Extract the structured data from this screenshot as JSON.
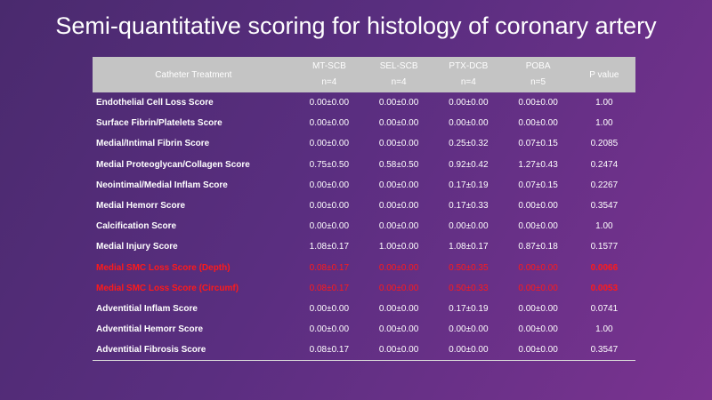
{
  "title": "Semi-quantitative scoring for histology of coronary artery",
  "table": {
    "header_label": "Catheter Treatment",
    "columns": [
      {
        "name": "MT-SCB",
        "n": "n=4"
      },
      {
        "name": "SEL-SCB",
        "n": "n=4"
      },
      {
        "name": "PTX-DCB",
        "n": "n=4"
      },
      {
        "name": "POBA",
        "n": "n=5"
      }
    ],
    "pvalue_header": "P value",
    "highlight_color": "#ff1a1a",
    "rows": [
      {
        "label": "Endothelial Cell Loss Score",
        "values": [
          "0.00±0.00",
          "0.00±0.00",
          "0.00±0.00",
          "0.00±0.00"
        ],
        "p": "1.00",
        "highlight": false
      },
      {
        "label": "Surface Fibrin/Platelets Score",
        "values": [
          "0.00±0.00",
          "0.00±0.00",
          "0.00±0.00",
          "0.00±0.00"
        ],
        "p": "1.00",
        "highlight": false
      },
      {
        "label": "Medial/Intimal Fibrin Score",
        "values": [
          "0.00±0.00",
          "0.00±0.00",
          "0.25±0.32",
          "0.07±0.15"
        ],
        "p": "0.2085",
        "highlight": false
      },
      {
        "label": "Medial Proteoglycan/Collagen Score",
        "values": [
          "0.75±0.50",
          "0.58±0.50",
          "0.92±0.42",
          "1.27±0.43"
        ],
        "p": "0.2474",
        "highlight": false
      },
      {
        "label": "Neointimal/Medial Inflam Score",
        "values": [
          "0.00±0.00",
          "0.00±0.00",
          "0.17±0.19",
          "0.07±0.15"
        ],
        "p": "0.2267",
        "highlight": false
      },
      {
        "label": "Medial Hemorr Score",
        "values": [
          "0.00±0.00",
          "0.00±0.00",
          "0.17±0.33",
          "0.00±0.00"
        ],
        "p": "0.3547",
        "highlight": false
      },
      {
        "label": "Calcification Score",
        "values": [
          "0.00±0.00",
          "0.00±0.00",
          "0.00±0.00",
          "0.00±0.00"
        ],
        "p": "1.00",
        "highlight": false
      },
      {
        "label": "Medial Injury Score",
        "values": [
          "1.08±0.17",
          "1.00±0.00",
          "1.08±0.17",
          "0.87±0.18"
        ],
        "p": "0.1577",
        "highlight": false
      },
      {
        "label": "Medial SMC Loss Score (Depth)",
        "values": [
          "0.08±0.17",
          "0.00±0.00",
          "0.50±0.35",
          "0.00±0.00"
        ],
        "p": "0.0066",
        "highlight": true
      },
      {
        "label": "Medial SMC Loss Score (Circumf)",
        "values": [
          "0.08±0.17",
          "0.00±0.00",
          "0.50±0.33",
          "0.00±0.00"
        ],
        "p": "0.0053",
        "highlight": true
      },
      {
        "label": "Adventitial Inflam Score",
        "values": [
          "0.00±0.00",
          "0.00±0.00",
          "0.17±0.19",
          "0.00±0.00"
        ],
        "p": "0.0741",
        "highlight": false
      },
      {
        "label": "Adventitial Hemorr Score",
        "values": [
          "0.00±0.00",
          "0.00±0.00",
          "0.00±0.00",
          "0.00±0.00"
        ],
        "p": "1.00",
        "highlight": false
      },
      {
        "label": "Adventitial Fibrosis Score",
        "values": [
          "0.08±0.17",
          "0.00±0.00",
          "0.00±0.00",
          "0.00±0.00"
        ],
        "p": "0.3547",
        "highlight": false
      }
    ]
  }
}
